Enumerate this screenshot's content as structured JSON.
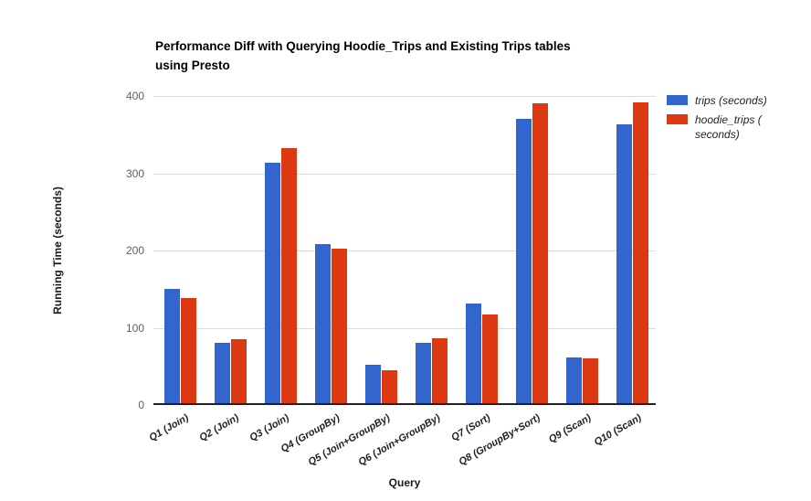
{
  "header": {
    "title_display": "Performance Diff with Querying Hoodie_Trips and Existing Trips tables\nusing Presto"
  },
  "chart_data": {
    "type": "bar",
    "title": "Performance Diff with Querying Hoodie_Trips and Existing Trips tables using Presto",
    "xlabel": "Query",
    "ylabel": "Running Time (seconds)",
    "ylim": [
      0,
      400
    ],
    "yticks": [
      0,
      100,
      200,
      300,
      400
    ],
    "grid": true,
    "legend_position": "right",
    "categories": [
      "Q1 (Join)",
      "Q2 (Join)",
      "Q3 (Join)",
      "Q4 (GroupBy)",
      "Q5 (Join+GroupBy)",
      "Q6 (Join+GroupBy)",
      "Q7 (Sort)",
      "Q8 (GroupBy+Sort)",
      "Q9 (Scan)",
      "Q10 (Scan)"
    ],
    "series": [
      {
        "name": "trips (seconds)",
        "color": "#3366CC",
        "values": [
          150,
          81,
          314,
          208,
          52,
          81,
          131,
          371,
          61,
          363
        ]
      },
      {
        "name": "hoodie_trips (seconds)",
        "color": "#DC3912",
        "values": [
          138,
          85,
          333,
          202,
          45,
          86,
          117,
          390,
          60,
          392
        ]
      }
    ]
  },
  "legend": {
    "items": [
      {
        "label": "trips (seconds)",
        "color": "#3366CC"
      },
      {
        "label": "hoodie_trips (\nseconds)",
        "color": "#DC3912"
      }
    ]
  },
  "colors": {
    "background": "#ffffff",
    "gridline": "#dcdcdc",
    "axis_line": "#212121",
    "tick_label": "#5f5f5f",
    "title_text": "#000000"
  }
}
